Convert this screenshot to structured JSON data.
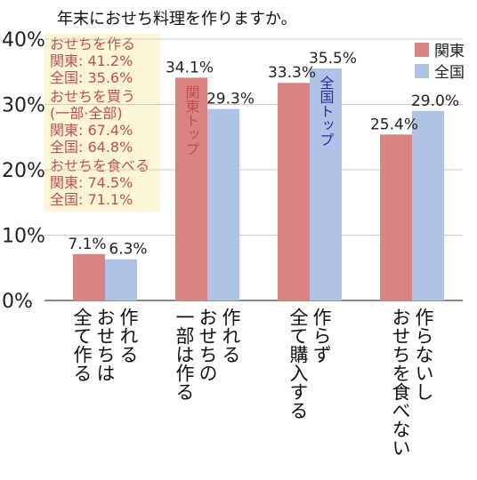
{
  "chart_data": {
    "type": "bar",
    "title": "年末におせち料理を作りますか。",
    "categories": [
      [
        "作れる",
        "おせちは",
        "全て作る"
      ],
      [
        "作れる",
        "おせちの",
        "一部は作る"
      ],
      [
        "作らず",
        "全て購入する"
      ],
      [
        "作らないし",
        "おせちを食べない"
      ]
    ],
    "series": [
      {
        "name": "関東",
        "color": "#d98483",
        "values": [
          7.1,
          34.1,
          33.3,
          25.4
        ],
        "labels": [
          "7.1%",
          "34.1%",
          "33.3%",
          "25.4%"
        ]
      },
      {
        "name": "全国",
        "color": "#aec3e6",
        "values": [
          6.3,
          29.3,
          35.5,
          29.0
        ],
        "labels": [
          "6.3%",
          "29.3%",
          "35.5%",
          "29.0%"
        ]
      }
    ],
    "ylim": [
      0,
      40
    ],
    "yticks": [
      0,
      10,
      20,
      30,
      40
    ],
    "ytick_labels": [
      "0%",
      "10%",
      "20%",
      "30%",
      "40%"
    ],
    "grid": true,
    "legend_position": "top-right",
    "callouts": [
      {
        "text": "関東トップ",
        "series": 0,
        "category": 1,
        "color": "#c0504d"
      },
      {
        "text": "全国トップ",
        "series": 1,
        "category": 2,
        "color": "#2b2bb0"
      }
    ],
    "notes": [
      [
        "おせちを作る",
        "関東: 41.2%",
        "全国: 35.6%"
      ],
      [
        "おせちを買う",
        "(一部·全部)",
        "関東: 67.4%",
        "全国: 64.8%"
      ],
      [
        "おせちを食べる",
        "関東: 74.5%",
        "全国: 71.1%"
      ]
    ],
    "note_bg": "#fdf6d6",
    "grid_color": "#cccccc",
    "axis_color": "#666666"
  }
}
